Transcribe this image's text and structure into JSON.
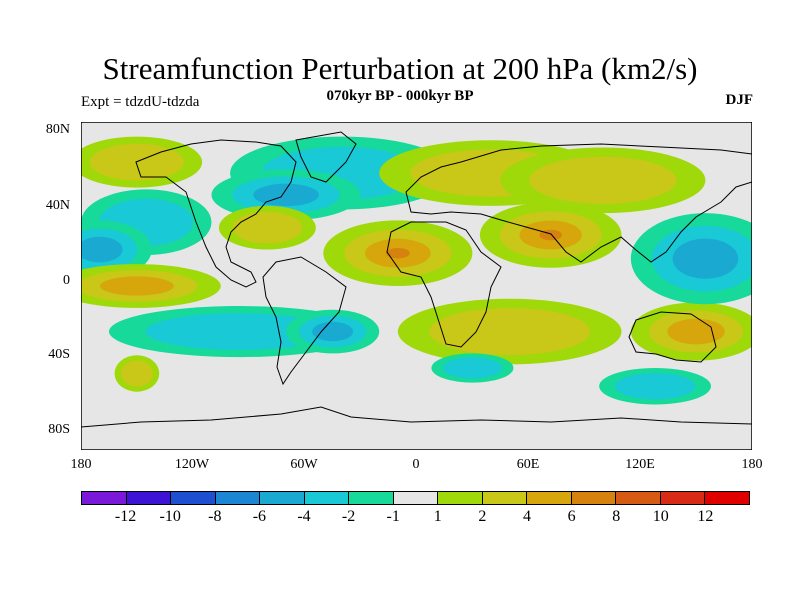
{
  "title": "Streamfunction Perturbation at 200 hPa (km2/s)",
  "subtitle": "070kyr BP - 000kyr BP",
  "left_label": "Expt = tdzdU-tdzda",
  "right_label": "DJF",
  "map": {
    "projection": "cylindrical equidistant",
    "lon_range": [
      -180,
      180
    ],
    "lat_range": [
      -90,
      90
    ],
    "background_color": "#e6e6e6",
    "lat_ticks": [
      "80N",
      "40N",
      "0",
      "40S",
      "80S"
    ],
    "lon_ticks": [
      "180",
      "120W",
      "60W",
      "0",
      "60E",
      "120E",
      "180"
    ]
  },
  "colorbar": {
    "colors": [
      "#7a19d9",
      "#3d14d6",
      "#1f4fd1",
      "#1a86d4",
      "#1aa9d1",
      "#19c9d6",
      "#17d99a",
      "#e6e6e6",
      "#9fd90a",
      "#c9c718",
      "#d6a60c",
      "#d6820e",
      "#d65a12",
      "#d92a15",
      "#e00000"
    ],
    "labels": [
      "-12",
      "-10",
      "-8",
      "-6",
      "-4",
      "-2",
      "-1",
      "1",
      "2",
      "4",
      "6",
      "8",
      "10",
      "12"
    ]
  },
  "field_blobs": [
    {
      "lon": -150,
      "lat": 68,
      "rx": 35,
      "ry": 14,
      "level": 2
    },
    {
      "lon": -40,
      "lat": 62,
      "rx": 60,
      "ry": 20,
      "level": -2
    },
    {
      "lon": -70,
      "lat": 50,
      "rx": 40,
      "ry": 14,
      "level": -4
    },
    {
      "lon": -145,
      "lat": 35,
      "rx": 35,
      "ry": 18,
      "level": -2
    },
    {
      "lon": -170,
      "lat": 20,
      "rx": 28,
      "ry": 16,
      "level": -4
    },
    {
      "lon": -150,
      "lat": 0,
      "rx": 45,
      "ry": 12,
      "level": 4
    },
    {
      "lon": -80,
      "lat": 32,
      "rx": 26,
      "ry": 12,
      "level": 2
    },
    {
      "lon": -10,
      "lat": 18,
      "rx": 40,
      "ry": 18,
      "level": 6
    },
    {
      "lon": 72,
      "lat": 28,
      "rx": 38,
      "ry": 18,
      "level": 6
    },
    {
      "lon": 40,
      "lat": 62,
      "rx": 60,
      "ry": 18,
      "level": 2
    },
    {
      "lon": 100,
      "lat": 58,
      "rx": 55,
      "ry": 18,
      "level": 2
    },
    {
      "lon": 50,
      "lat": -25,
      "rx": 60,
      "ry": 18,
      "level": 2
    },
    {
      "lon": 150,
      "lat": -25,
      "rx": 35,
      "ry": 16,
      "level": 4
    },
    {
      "lon": -95,
      "lat": -25,
      "rx": 70,
      "ry": 14,
      "level": -2
    },
    {
      "lon": -45,
      "lat": -25,
      "rx": 25,
      "ry": 12,
      "level": -4
    },
    {
      "lon": 155,
      "lat": 15,
      "rx": 40,
      "ry": 25,
      "level": -4
    },
    {
      "lon": 128,
      "lat": -55,
      "rx": 30,
      "ry": 10,
      "level": -2
    },
    {
      "lon": -150,
      "lat": -48,
      "rx": 12,
      "ry": 10,
      "level": 2
    },
    {
      "lon": 30,
      "lat": -45,
      "rx": 22,
      "ry": 8,
      "level": -2
    }
  ]
}
